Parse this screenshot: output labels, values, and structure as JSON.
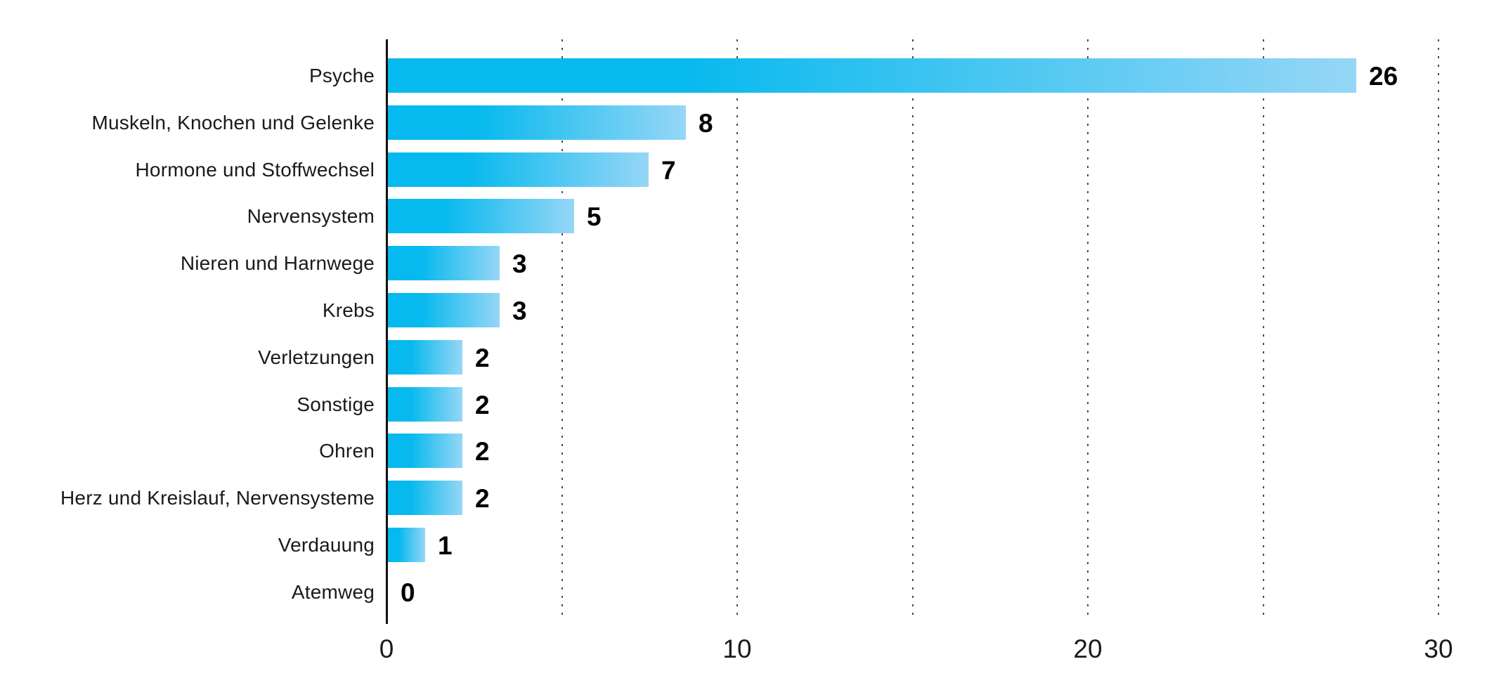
{
  "chart_data": {
    "type": "bar",
    "orientation": "horizontal",
    "title": "",
    "xlabel": "",
    "ylabel": "",
    "categories": [
      "Psyche",
      "Muskeln, Knochen und Gelenke",
      "Hormone und Stoffwechsel",
      "Nervensystem",
      "Nieren und Harnwege",
      "Krebs",
      "Verletzungen",
      "Sonstige",
      "Ohren",
      "Herz und Kreislauf, Nervensysteme",
      "Verdauung",
      "Atemweg"
    ],
    "values": [
      26,
      8,
      7,
      5,
      3,
      3,
      2,
      2,
      2,
      2,
      1,
      0
    ],
    "value_labels": [
      "26",
      "8",
      "7",
      "5",
      "3",
      "3",
      "2",
      "2",
      "2",
      "2",
      "1",
      "0"
    ],
    "xlim": [
      0,
      30.5
    ],
    "x_ticks": [
      0,
      10,
      20,
      30
    ],
    "x_gridlines": [
      5,
      10,
      15,
      20,
      25,
      30
    ],
    "grid": "dotted-vertical",
    "legend": "none",
    "colors": {
      "bar_gradient_start": "#06b9ee",
      "bar_gradient_end": "#96d6f6",
      "value_label": "#000000",
      "tick_label": "#1a1a1a",
      "category_label": "#1a1a1a",
      "axis_line": "#111111",
      "gridline": "#4a4a4a",
      "background": "#ffffff"
    }
  }
}
